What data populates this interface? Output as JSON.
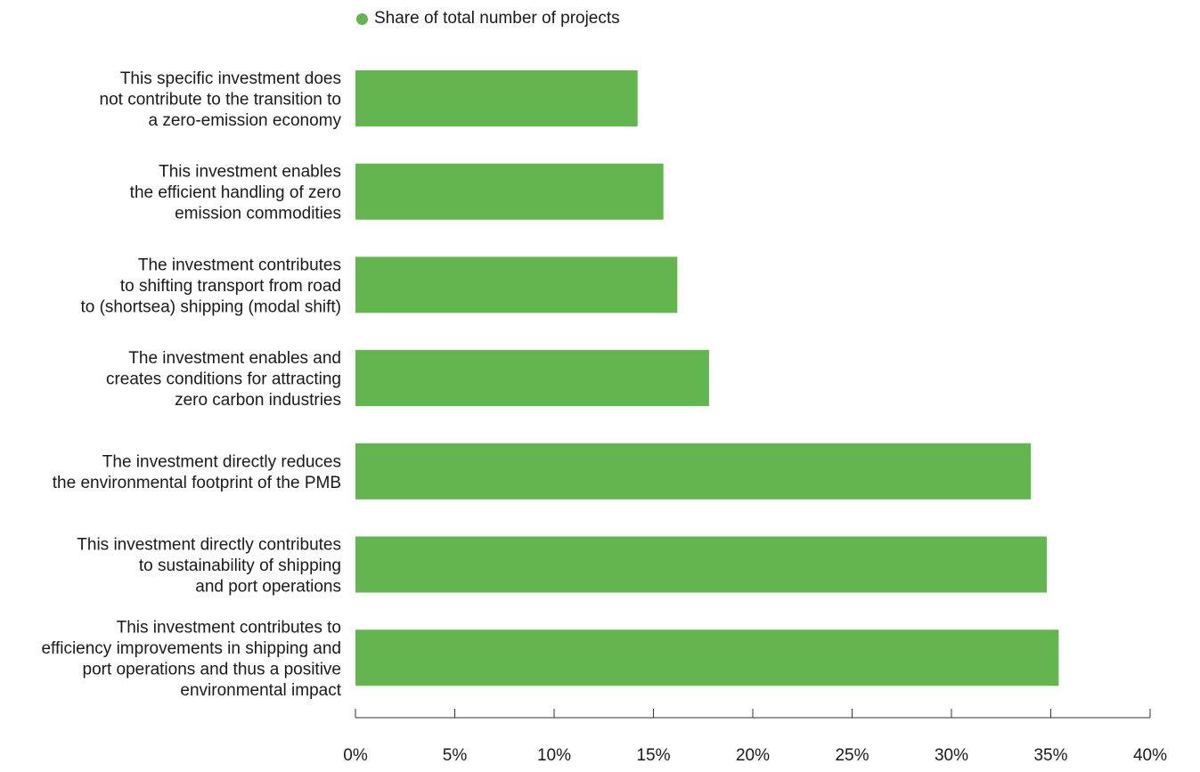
{
  "chart_data": {
    "type": "bar",
    "orientation": "horizontal",
    "categories": [
      "This specific investment does not contribute to the transition to a zero-emission economy",
      "This investment enables the efficient handling of zero emission commodities",
      "The investment contributes to shifting transport from road to (shortsea) shipping (modal shift)",
      "The investment enables and creates conditions for attracting zero carbon industries",
      "The investment directly reduces the environmental footprint of the PMB",
      "This investment directly contributes to sustainability of shipping and port operations",
      "This investment contributes to efficiency improvements in shipping and port operations and thus a positive environmental impact"
    ],
    "category_lines": [
      [
        "This specific investment does",
        "not contribute to the transition to",
        "a zero-emission economy"
      ],
      [
        "This investment enables",
        "the efficient handling of zero",
        "emission commodities"
      ],
      [
        "The investment contributes",
        "to shifting transport from road",
        "to (shortsea) shipping (modal shift)"
      ],
      [
        "The investment enables and",
        "creates conditions for attracting",
        "zero carbon industries"
      ],
      [
        "The investment directly reduces",
        "the environmental footprint of the PMB"
      ],
      [
        "This investment directly contributes",
        "to sustainability of shipping",
        "and port operations"
      ],
      [
        "This investment contributes to",
        "efficiency improvements in shipping and",
        "port operations and thus a positive",
        "environmental impact"
      ]
    ],
    "series": [
      {
        "name": "Share of total number of projects",
        "color": "#62b54f",
        "values": [
          14.2,
          15.5,
          16.2,
          17.8,
          34.0,
          34.8,
          35.4
        ]
      }
    ],
    "xlim": [
      0,
      40
    ],
    "xticks": [
      0,
      5,
      10,
      15,
      20,
      25,
      30,
      35,
      40
    ],
    "tick_labels": [
      "0%",
      "5%",
      "10%",
      "15%",
      "20%",
      "25%",
      "30%",
      "35%",
      "40%"
    ],
    "xlabel": "",
    "ylabel": "",
    "title": "",
    "grid": false,
    "legend_position": "top"
  }
}
